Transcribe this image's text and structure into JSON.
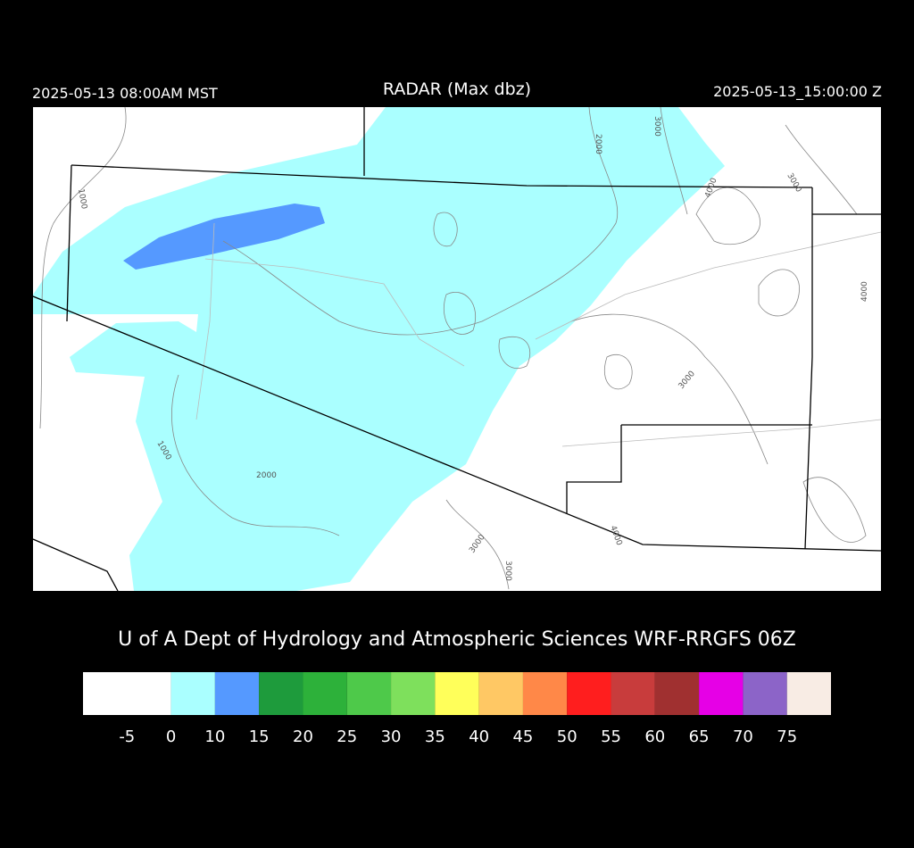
{
  "header": {
    "left": "2025-05-13 08:00AM MST",
    "title": "RADAR (Max dbz)",
    "right": "2025-05-13_15:00:00 Z"
  },
  "map": {
    "contour_labels": [
      2000,
      3000,
      1000,
      4000,
      3000,
      4000,
      3000,
      1000,
      2000,
      3000,
      3000,
      4000
    ]
  },
  "credit": "U of A Dept of Hydrology and Atmospheric Sciences WRF-RRGFS 06Z",
  "colorbar": {
    "colors": [
      "#ffffff",
      "#aaffff",
      "#5599ff",
      "#1e9b3c",
      "#2db13a",
      "#4ec94a",
      "#7ee05c",
      "#ffff5a",
      "#ffc864",
      "#ff8848",
      "#ff1e1e",
      "#c83c3c",
      "#a03030",
      "#e600e6",
      "#8c64c8",
      "#f8ece4"
    ],
    "ticks": [
      -5,
      0,
      10,
      15,
      20,
      25,
      30,
      35,
      40,
      45,
      50,
      55,
      60,
      65,
      70,
      75
    ]
  }
}
